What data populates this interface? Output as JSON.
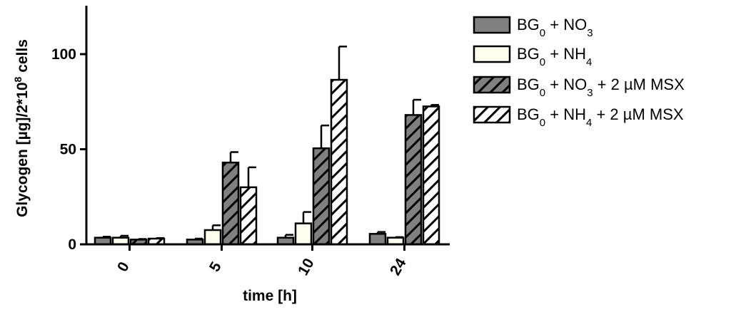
{
  "chart_data": {
    "type": "bar",
    "categories": [
      "0",
      "5",
      "10",
      "24"
    ],
    "xlabel": "time [h]",
    "ylabel": {
      "pre": "Glycogen [µg]/2*10",
      "sup": "8",
      "post": " cells"
    },
    "ylim": [
      0,
      125
    ],
    "yticks": [
      "0",
      "50",
      "100"
    ],
    "grid": false,
    "legend_position": "right",
    "series": [
      {
        "name": {
          "a": "BG",
          "a_sub": "0",
          "b": " + NO",
          "b_sub": "3",
          "c": ""
        },
        "fill": "#808080",
        "hatch": false,
        "values": [
          3.5,
          2.5,
          3.5,
          5.5
        ],
        "errors": [
          0.5,
          0.5,
          1.5,
          1.0
        ]
      },
      {
        "name": {
          "a": "BG",
          "a_sub": "0",
          "b": " + NH",
          "b_sub": "4",
          "c": ""
        },
        "fill": "#fffff0",
        "hatch": false,
        "values": [
          3.5,
          7.5,
          11.0,
          3.5
        ],
        "errors": [
          1.0,
          2.5,
          6.0,
          0.3
        ]
      },
      {
        "name": {
          "a": "BG",
          "a_sub": "0",
          "b": " + NO",
          "b_sub": "3",
          "c": " + 2 µM MSX"
        },
        "fill": "#808080",
        "hatch": true,
        "values": [
          2.5,
          43.0,
          50.5,
          68.0
        ],
        "errors": [
          0.3,
          5.5,
          12.0,
          8.0
        ]
      },
      {
        "name": {
          "a": "BG",
          "a_sub": "0",
          "b": " + NH",
          "b_sub": "4",
          "c": " + 2 µM MSX"
        },
        "fill": "#ffffff",
        "hatch": true,
        "values": [
          3.0,
          30.0,
          86.5,
          72.5
        ],
        "errors": [
          0.3,
          10.5,
          17.5,
          0.8
        ]
      }
    ]
  }
}
